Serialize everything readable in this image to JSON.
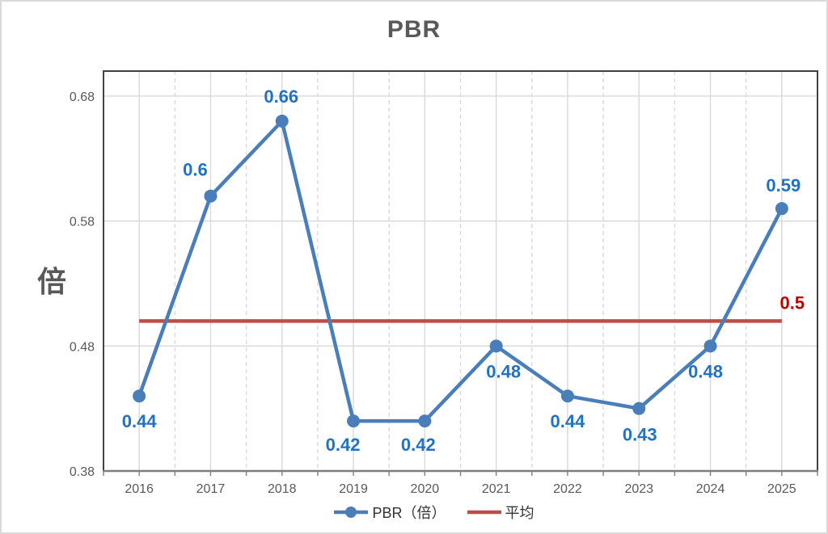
{
  "chart_data": {
    "type": "line",
    "title": "PBR",
    "ylabel": "倍",
    "xlabel": "",
    "categories": [
      "2016",
      "2017",
      "2018",
      "2019",
      "2020",
      "2021",
      "2022",
      "2023",
      "2024",
      "2025"
    ],
    "series": [
      {
        "name": "PBR（倍）",
        "type": "line",
        "color": "#4a7ebb",
        "values": [
          0.44,
          0.6,
          0.66,
          0.42,
          0.42,
          0.48,
          0.44,
          0.43,
          0.48,
          0.59
        ],
        "point_labels": [
          "0.44",
          "0.6",
          "0.66",
          "0.42",
          "0.42",
          "0.48",
          "0.44",
          "0.43",
          "0.48",
          "0.59"
        ],
        "label_color": "#2272c3",
        "label_offsets": [
          [
            0,
            32
          ],
          [
            -19,
            -32
          ],
          [
            -1,
            -30
          ],
          [
            -13,
            30
          ],
          [
            -8,
            30
          ],
          [
            9,
            32
          ],
          [
            0,
            32
          ],
          [
            1,
            33
          ],
          [
            -6,
            32
          ],
          [
            2,
            -28
          ]
        ]
      },
      {
        "name": "平均",
        "type": "hline",
        "color": "#bf4c48",
        "value": 0.5,
        "label": "0.5",
        "label_color": "#c00000",
        "label_offset": [
          13,
          -22
        ]
      }
    ],
    "ylim": [
      0.38,
      0.7
    ],
    "yticks": [
      0.38,
      0.48,
      0.58,
      0.68
    ],
    "ytick_labels": [
      "0.38",
      "0.48",
      "0.58",
      "0.68"
    ],
    "grid": {
      "horizontal": "solid at each 0.1 step",
      "vertical_major": "solid at category centers",
      "vertical_minor": "dashed at category midpoints",
      "color": "#d9d9d9"
    },
    "legend_position": "bottom-center",
    "colors": {
      "grid": "#d9d9d9",
      "plot_border": "#424242",
      "axis_line": "#7f7f7f",
      "axis_text": "#595959",
      "title_text": "#595959"
    }
  }
}
